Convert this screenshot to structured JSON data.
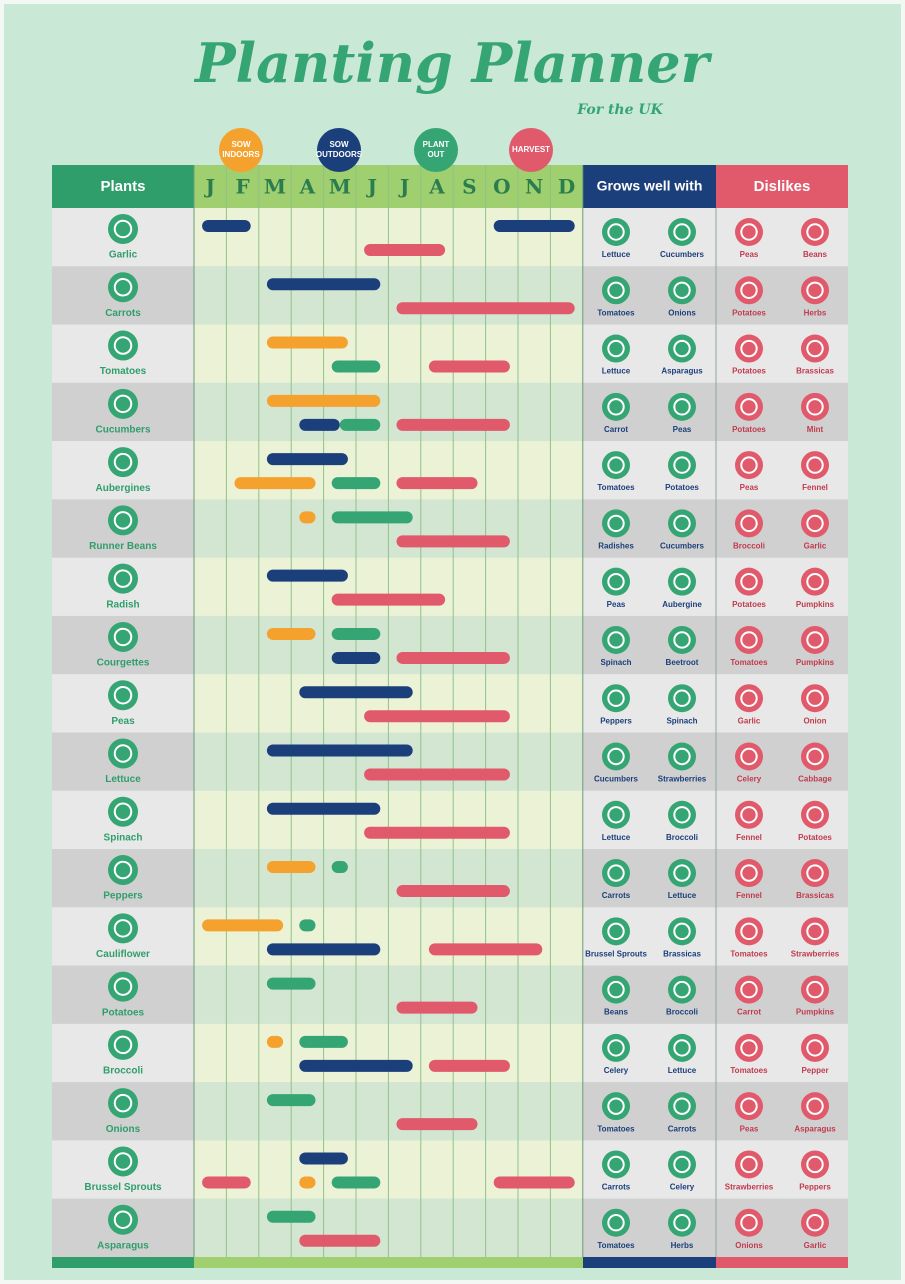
{
  "header": {
    "title": "Planting Planner",
    "subtitle": "For the UK"
  },
  "legend": [
    {
      "label": "SOW INDOORS",
      "color": "#f5a12e"
    },
    {
      "label": "SOW OUTDOORS",
      "color": "#1b3f7b"
    },
    {
      "label": "PLANT OUT",
      "color": "#35a574"
    },
    {
      "label": "HARVEST",
      "color": "#e05a6b"
    }
  ],
  "columns": {
    "plants": "Plants",
    "grows": "Grows well with",
    "dislikes": "Dislikes"
  },
  "months": [
    "J",
    "F",
    "M",
    "A",
    "M",
    "J",
    "J",
    "A",
    "S",
    "O",
    "N",
    "D"
  ],
  "plants": [
    {
      "name": "Garlic",
      "bars": [
        [
          {
            "kind": 1,
            "start": 0.25,
            "end": 1.75
          },
          {
            "kind": 1,
            "start": 9.25,
            "end": 11.75
          }
        ],
        [
          {
            "kind": 3,
            "start": 5.25,
            "end": 7.75
          }
        ]
      ],
      "grows": [
        "Lettuce",
        "Cucumbers"
      ],
      "dislikes": [
        "Peas",
        "Beans"
      ]
    },
    {
      "name": "Carrots",
      "bars": [
        [
          {
            "kind": 1,
            "start": 2.25,
            "end": 5.75
          }
        ],
        [
          {
            "kind": 3,
            "start": 6.25,
            "end": 11.75
          }
        ]
      ],
      "grows": [
        "Tomatoes",
        "Onions"
      ],
      "dislikes": [
        "Potatoes",
        "Herbs"
      ]
    },
    {
      "name": "Tomatoes",
      "bars": [
        [
          {
            "kind": 0,
            "start": 2.25,
            "end": 4.75
          }
        ],
        [
          {
            "kind": 2,
            "start": 4.25,
            "end": 5.75
          },
          {
            "kind": 3,
            "start": 7.25,
            "end": 9.75
          }
        ]
      ],
      "grows": [
        "Lettuce",
        "Asparagus"
      ],
      "dislikes": [
        "Potatoes",
        "Brassicas"
      ]
    },
    {
      "name": "Cucumbers",
      "bars": [
        [
          {
            "kind": 0,
            "start": 2.25,
            "end": 5.75
          }
        ],
        [
          {
            "kind": 1,
            "start": 3.25,
            "end": 4.5
          },
          {
            "kind": 2,
            "start": 4.5,
            "end": 5.75
          },
          {
            "kind": 3,
            "start": 6.25,
            "end": 9.75
          }
        ]
      ],
      "grows": [
        "Carrot",
        "Peas"
      ],
      "dislikes": [
        "Potatoes",
        "Mint"
      ]
    },
    {
      "name": "Aubergines",
      "bars": [
        [
          {
            "kind": 1,
            "start": 2.25,
            "end": 4.75
          }
        ],
        [
          {
            "kind": 0,
            "start": 1.25,
            "end": 3.75
          },
          {
            "kind": 2,
            "start": 4.25,
            "end": 5.75
          },
          {
            "kind": 3,
            "start": 6.25,
            "end": 8.75
          }
        ]
      ],
      "grows": [
        "Tomatoes",
        "Potatoes"
      ],
      "dislikes": [
        "Peas",
        "Fennel"
      ]
    },
    {
      "name": "Runner Beans",
      "bars": [
        [
          {
            "kind": 0,
            "start": 3.25,
            "end": 3.75
          },
          {
            "kind": 2,
            "start": 4.25,
            "end": 6.75
          }
        ],
        [
          {
            "kind": 3,
            "start": 6.25,
            "end": 9.75
          }
        ]
      ],
      "grows": [
        "Radishes",
        "Cucumbers"
      ],
      "dislikes": [
        "Broccoli",
        "Garlic"
      ]
    },
    {
      "name": "Radish",
      "bars": [
        [
          {
            "kind": 1,
            "start": 2.25,
            "end": 4.75
          }
        ],
        [
          {
            "kind": 3,
            "start": 4.25,
            "end": 7.75
          }
        ]
      ],
      "grows": [
        "Peas",
        "Aubergine"
      ],
      "dislikes": [
        "Potatoes",
        "Pumpkins"
      ]
    },
    {
      "name": "Courgettes",
      "bars": [
        [
          {
            "kind": 0,
            "start": 2.25,
            "end": 3.75
          },
          {
            "kind": 2,
            "start": 4.25,
            "end": 5.75
          }
        ],
        [
          {
            "kind": 1,
            "start": 4.25,
            "end": 5.75
          },
          {
            "kind": 3,
            "start": 6.25,
            "end": 9.75
          }
        ]
      ],
      "grows": [
        "Spinach",
        "Beetroot"
      ],
      "dislikes": [
        "Tomatoes",
        "Pumpkins"
      ]
    },
    {
      "name": "Peas",
      "bars": [
        [
          {
            "kind": 1,
            "start": 3.25,
            "end": 6.75
          }
        ],
        [
          {
            "kind": 3,
            "start": 5.25,
            "end": 9.75
          }
        ]
      ],
      "grows": [
        "Peppers",
        "Spinach"
      ],
      "dislikes": [
        "Garlic",
        "Onion"
      ]
    },
    {
      "name": "Lettuce",
      "bars": [
        [
          {
            "kind": 1,
            "start": 2.25,
            "end": 6.75
          }
        ],
        [
          {
            "kind": 3,
            "start": 5.25,
            "end": 9.75
          }
        ]
      ],
      "grows": [
        "Cucumbers",
        "Strawberries"
      ],
      "dislikes": [
        "Celery",
        "Cabbage"
      ]
    },
    {
      "name": "Spinach",
      "bars": [
        [
          {
            "kind": 1,
            "start": 2.25,
            "end": 5.75
          }
        ],
        [
          {
            "kind": 3,
            "start": 5.25,
            "end": 9.75
          }
        ]
      ],
      "grows": [
        "Lettuce",
        "Broccoli"
      ],
      "dislikes": [
        "Fennel",
        "Potatoes"
      ]
    },
    {
      "name": "Peppers",
      "bars": [
        [
          {
            "kind": 0,
            "start": 2.25,
            "end": 3.75
          },
          {
            "kind": 2,
            "start": 4.25,
            "end": 4.75
          }
        ],
        [
          {
            "kind": 3,
            "start": 6.25,
            "end": 9.75
          }
        ]
      ],
      "grows": [
        "Carrots",
        "Lettuce"
      ],
      "dislikes": [
        "Fennel",
        "Brassicas"
      ]
    },
    {
      "name": "Cauliflower",
      "bars": [
        [
          {
            "kind": 0,
            "start": 0.25,
            "end": 2.75
          },
          {
            "kind": 2,
            "start": 3.25,
            "end": 3.75
          }
        ],
        [
          {
            "kind": 1,
            "start": 2.25,
            "end": 5.75
          },
          {
            "kind": 3,
            "start": 7.25,
            "end": 10.75
          }
        ]
      ],
      "grows": [
        "Brussel Sprouts",
        "Brassicas"
      ],
      "dislikes": [
        "Tomatoes",
        "Strawberries"
      ]
    },
    {
      "name": "Potatoes",
      "bars": [
        [
          {
            "kind": 2,
            "start": 2.25,
            "end": 3.75
          }
        ],
        [
          {
            "kind": 3,
            "start": 6.25,
            "end": 8.75
          }
        ]
      ],
      "grows": [
        "Beans",
        "Broccoli"
      ],
      "dislikes": [
        "Carrot",
        "Pumpkins"
      ]
    },
    {
      "name": "Broccoli",
      "bars": [
        [
          {
            "kind": 0,
            "start": 2.25,
            "end": 2.75
          },
          {
            "kind": 2,
            "start": 3.25,
            "end": 4.75
          }
        ],
        [
          {
            "kind": 1,
            "start": 3.25,
            "end": 6.75
          },
          {
            "kind": 3,
            "start": 7.25,
            "end": 9.75
          }
        ]
      ],
      "grows": [
        "Celery",
        "Lettuce"
      ],
      "dislikes": [
        "Tomatoes",
        "Pepper"
      ]
    },
    {
      "name": "Onions",
      "bars": [
        [
          {
            "kind": 2,
            "start": 2.25,
            "end": 3.75
          }
        ],
        [
          {
            "kind": 3,
            "start": 6.25,
            "end": 8.75
          }
        ]
      ],
      "grows": [
        "Tomatoes",
        "Carrots"
      ],
      "dislikes": [
        "Peas",
        "Asparagus"
      ]
    },
    {
      "name": "Brussel Sprouts",
      "bars": [
        [
          {
            "kind": 1,
            "start": 3.25,
            "end": 4.75
          }
        ],
        [
          {
            "kind": 3,
            "start": 0.25,
            "end": 1.75
          },
          {
            "kind": 0,
            "start": 3.25,
            "end": 3.75
          },
          {
            "kind": 2,
            "start": 4.25,
            "end": 5.75
          },
          {
            "kind": 3,
            "start": 9.25,
            "end": 11.75
          }
        ]
      ],
      "grows": [
        "Carrots",
        "Celery"
      ],
      "dislikes": [
        "Strawberries",
        "Peppers"
      ]
    },
    {
      "name": "Asparagus",
      "bars": [
        [
          {
            "kind": 2,
            "start": 2.25,
            "end": 3.75
          }
        ],
        [
          {
            "kind": 3,
            "start": 3.25,
            "end": 5.75
          }
        ]
      ],
      "grows": [
        "Tomatoes",
        "Herbs"
      ],
      "dislikes": [
        "Onions",
        "Garlic"
      ]
    }
  ]
}
